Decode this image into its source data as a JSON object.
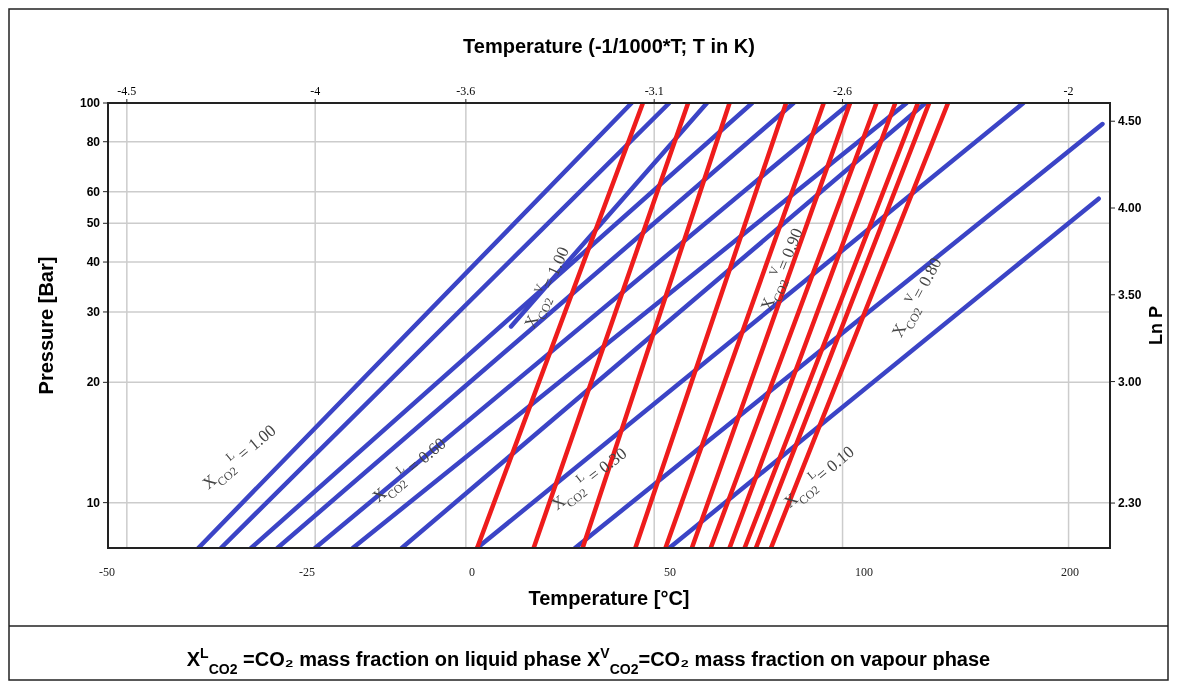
{
  "chart_data": {
    "type": "line",
    "title": "Temperature (-1/1000*T; T in K)",
    "xlabel": "Temperature [°C]",
    "ylabel": "Pressure [Bar]",
    "y2label": "Ln P",
    "xlim": [
      -4.55,
      -1.89
    ],
    "xticks": [
      -4.5,
      -4,
      -3.6,
      -3.1,
      -2.6,
      -2
    ],
    "ylim": [
      7.7,
      100
    ],
    "yticks": [
      10,
      20,
      30,
      40,
      50,
      60,
      80,
      100
    ],
    "y2lim": [
      2.041,
      4.605
    ],
    "y2ticks": [
      {
        "value": 2.3,
        "label": "2.30"
      },
      {
        "value": 3,
        "label": "3.00"
      },
      {
        "value": 3.5,
        "label": "3.50"
      },
      {
        "value": 4,
        "label": "4.00"
      },
      {
        "value": 4.5,
        "label": "4.50"
      }
    ],
    "log": "y",
    "grid": true,
    "series": [
      {
        "color": "#3b44c6",
        "x": [
          -4.31,
          -3.16
        ],
        "values": [
          7.7,
          100
        ]
      },
      {
        "color": "#3b44c6",
        "x": [
          -4.25,
          -3.06
        ],
        "values": [
          7.7,
          100
        ]
      },
      {
        "color": "#3b44c6",
        "x": [
          -4.17,
          -2.84
        ],
        "values": [
          7.7,
          100
        ]
      },
      {
        "color": "#3b44c6",
        "x": [
          -4.1,
          -2.73
        ],
        "values": [
          7.7,
          100
        ]
      },
      {
        "color": "#3b44c6",
        "x": [
          -4.0,
          -2.58
        ],
        "values": [
          7.7,
          100
        ]
      },
      {
        "color": "#3b44c6",
        "x": [
          -3.9,
          -2.43
        ],
        "values": [
          7.7,
          100
        ]
      },
      {
        "color": "#3b44c6",
        "x": [
          -3.77,
          -2.38
        ],
        "values": [
          7.7,
          100
        ]
      },
      {
        "color": "#3b44c6",
        "x": [
          -3.57,
          -2.12
        ],
        "values": [
          7.7,
          100
        ]
      },
      {
        "color": "#3b44c6",
        "x": [
          -3.31,
          -1.91
        ],
        "values": [
          7.7,
          88.6
        ]
      },
      {
        "color": "#3b44c6",
        "x": [
          -3.06,
          -1.92
        ],
        "values": [
          7.7,
          57.6
        ]
      },
      {
        "color": "#3b44c6",
        "x": [
          -3.48,
          -2.96
        ],
        "values": [
          27.6,
          100
        ]
      },
      {
        "color": "#ee1c1c",
        "x": [
          -3.57,
          -3.13
        ],
        "values": [
          7.7,
          100
        ]
      },
      {
        "color": "#ee1c1c",
        "x": [
          -3.42,
          -3.01
        ],
        "values": [
          7.7,
          100
        ]
      },
      {
        "color": "#ee1c1c",
        "x": [
          -3.29,
          -2.9
        ],
        "values": [
          7.7,
          100
        ]
      },
      {
        "color": "#ee1c1c",
        "x": [
          -3.15,
          -2.75
        ],
        "values": [
          7.7,
          100
        ]
      },
      {
        "color": "#ee1c1c",
        "x": [
          -3.07,
          -2.65
        ],
        "values": [
          7.7,
          100
        ]
      },
      {
        "color": "#ee1c1c",
        "x": [
          -3.0,
          -2.58
        ],
        "values": [
          7.7,
          100
        ]
      },
      {
        "color": "#ee1c1c",
        "x": [
          -2.95,
          -2.51
        ],
        "values": [
          7.7,
          100
        ]
      },
      {
        "color": "#ee1c1c",
        "x": [
          -2.9,
          -2.46
        ],
        "values": [
          7.7,
          100
        ]
      },
      {
        "color": "#ee1c1c",
        "x": [
          -2.86,
          -2.4
        ],
        "values": [
          7.7,
          100
        ]
      },
      {
        "color": "#ee1c1c",
        "x": [
          -2.83,
          -2.37
        ],
        "values": [
          7.7,
          100
        ]
      },
      {
        "color": "#ee1c1c",
        "x": [
          -2.79,
          -2.32
        ],
        "values": [
          7.7,
          100
        ]
      }
    ],
    "annotations": [
      "X$_{CO2}$$^{L}$ = 1.00",
      "X$_{CO2}$$^{L}$ = 0.60",
      "X$_{CO2}$$^{L}$ = 0.30",
      "X$_{CO2}$$^{L}$= 0.10",
      "X$_{CO2}$$^{V}$= 1.00",
      "X$_{CO2}$$^{V}$= 0.90",
      "X$_{CO2}$$^{V}$= 0.80",
      "-50",
      "-25",
      "0",
      "50",
      "100",
      "200",
      "X$^{L}$$_{CO2}$ =CO₂ mass fraction on liquid phase  X$^{V}$$_{CO2}$=CO₂ mass fraction on vapour phase"
    ]
  }
}
